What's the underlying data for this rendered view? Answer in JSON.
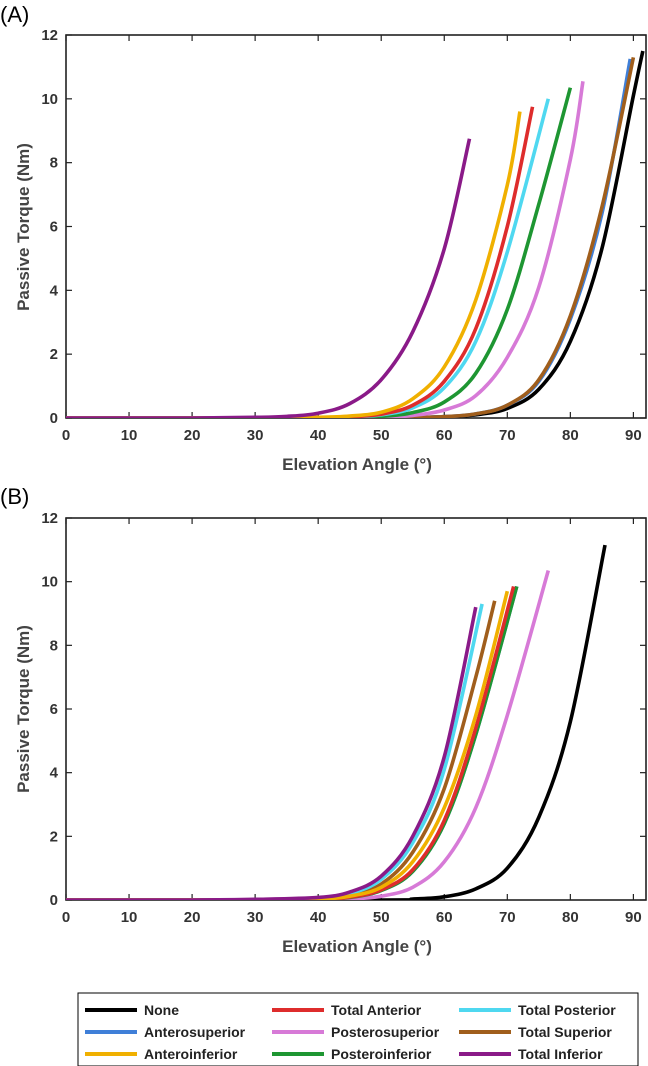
{
  "chart_data": [
    {
      "type": "line",
      "panel_label": "(A)",
      "xlabel": "Elevation Angle (°)",
      "ylabel": "Passive Torque (Nm)",
      "xlim": [
        0,
        92
      ],
      "ylim": [
        0,
        12
      ],
      "xticks": [
        "0",
        "10",
        "20",
        "30",
        "40",
        "50",
        "60",
        "70",
        "80",
        "90"
      ],
      "yticks": [
        "0",
        "2",
        "4",
        "6",
        "8",
        "10",
        "12"
      ],
      "grid": false,
      "series": [
        {
          "name": "None",
          "color": "#000000",
          "x": [
            50,
            55,
            60,
            65,
            70,
            75,
            80,
            85,
            90,
            91.5
          ],
          "y": [
            0.0,
            0.01,
            0.04,
            0.1,
            0.3,
            0.9,
            2.4,
            5.3,
            10.1,
            11.5
          ]
        },
        {
          "name": "Anterosuperior",
          "color": "#3f7fd8",
          "x": [
            50,
            55,
            60,
            65,
            70,
            75,
            80,
            85,
            89.5
          ],
          "y": [
            0.0,
            0.01,
            0.04,
            0.13,
            0.4,
            1.15,
            3.1,
            6.4,
            11.25
          ]
        },
        {
          "name": "Anteroinferior",
          "color": "#f0b000",
          "x": [
            30,
            40,
            45,
            50,
            55,
            60,
            65,
            70,
            72
          ],
          "y": [
            0.0,
            0.02,
            0.06,
            0.18,
            0.6,
            1.6,
            3.7,
            7.3,
            9.6
          ]
        },
        {
          "name": "Total Anterior",
          "color": "#de2c2c",
          "x": [
            30,
            40,
            45,
            50,
            55,
            60,
            65,
            70,
            74
          ],
          "y": [
            0.0,
            0.01,
            0.04,
            0.12,
            0.4,
            1.15,
            2.8,
            6.0,
            9.75
          ]
        },
        {
          "name": "Posterosuperior",
          "color": "#d77ad7",
          "x": [
            40,
            50,
            55,
            60,
            65,
            70,
            75,
            80,
            82
          ],
          "y": [
            0.0,
            0.02,
            0.08,
            0.25,
            0.7,
            1.9,
            4.1,
            8.1,
            10.55
          ]
        },
        {
          "name": "Posteroinferior",
          "color": "#1e9632",
          "x": [
            40,
            45,
            50,
            55,
            60,
            65,
            70,
            75,
            80
          ],
          "y": [
            0.0,
            0.02,
            0.05,
            0.17,
            0.5,
            1.4,
            3.4,
            6.7,
            10.35
          ]
        },
        {
          "name": "Total Posterior",
          "color": "#4fd8f0",
          "x": [
            30,
            40,
            45,
            50,
            55,
            60,
            65,
            70,
            76.5
          ],
          "y": [
            0.0,
            0.01,
            0.03,
            0.1,
            0.32,
            0.95,
            2.4,
            5.2,
            10.0
          ]
        },
        {
          "name": "Total Superior",
          "color": "#a05e1c",
          "x": [
            50,
            55,
            60,
            65,
            70,
            75,
            80,
            85,
            90
          ],
          "y": [
            0.0,
            0.01,
            0.04,
            0.13,
            0.4,
            1.2,
            3.2,
            6.6,
            11.3
          ]
        },
        {
          "name": "Total Inferior",
          "color": "#8a1a88",
          "x": [
            0,
            20,
            30,
            35,
            40,
            45,
            50,
            55,
            60,
            64
          ],
          "y": [
            0.0,
            0.0,
            0.02,
            0.05,
            0.15,
            0.45,
            1.2,
            2.7,
            5.3,
            8.75
          ]
        }
      ]
    },
    {
      "type": "line",
      "panel_label": "(B)",
      "xlabel": "Elevation Angle (°)",
      "ylabel": "Passive Torque (Nm)",
      "xlim": [
        0,
        92
      ],
      "ylim": [
        0,
        12
      ],
      "xticks": [
        "0",
        "10",
        "20",
        "30",
        "40",
        "50",
        "60",
        "70",
        "80",
        "90"
      ],
      "yticks": [
        "0",
        "2",
        "4",
        "6",
        "8",
        "10",
        "12"
      ],
      "grid": false,
      "series": [
        {
          "name": "None",
          "color": "#000000",
          "x": [
            50,
            55,
            60,
            65,
            70,
            75,
            80,
            85.5
          ],
          "y": [
            0.0,
            0.03,
            0.1,
            0.35,
            1.0,
            2.6,
            5.6,
            11.15
          ]
        },
        {
          "name": "Anterosuperior",
          "color": "#3f7fd8",
          "x": [
            30,
            40,
            45,
            50,
            55,
            60,
            65,
            71.5
          ],
          "y": [
            0.0,
            0.02,
            0.08,
            0.3,
            0.9,
            2.4,
            5.2,
            9.85
          ]
        },
        {
          "name": "Anteroinferior",
          "color": "#f0b000",
          "x": [
            30,
            40,
            45,
            50,
            55,
            60,
            65,
            70
          ],
          "y": [
            0.0,
            0.03,
            0.12,
            0.4,
            1.2,
            2.9,
            5.8,
            9.7
          ]
        },
        {
          "name": "Total Anterior",
          "color": "#de2c2c",
          "x": [
            30,
            40,
            45,
            50,
            55,
            60,
            65,
            71
          ],
          "y": [
            0.0,
            0.02,
            0.09,
            0.32,
            0.95,
            2.5,
            5.4,
            9.85
          ]
        },
        {
          "name": "Posterosuperior",
          "color": "#d77ad7",
          "x": [
            40,
            45,
            50,
            55,
            60,
            65,
            70,
            76.5
          ],
          "y": [
            0.0,
            0.03,
            0.12,
            0.4,
            1.2,
            2.9,
            5.8,
            10.35
          ]
        },
        {
          "name": "Posteroinferior",
          "color": "#1e9632",
          "x": [
            30,
            40,
            45,
            50,
            55,
            60,
            65,
            71.5
          ],
          "y": [
            0.0,
            0.02,
            0.08,
            0.3,
            0.9,
            2.4,
            5.2,
            9.85
          ]
        },
        {
          "name": "Total Posterior",
          "color": "#4fd8f0",
          "x": [
            30,
            40,
            45,
            50,
            55,
            60,
            66
          ],
          "y": [
            0.0,
            0.05,
            0.2,
            0.65,
            1.8,
            4.1,
            9.3
          ]
        },
        {
          "name": "Total Superior",
          "color": "#a05e1c",
          "x": [
            30,
            40,
            45,
            50,
            55,
            60,
            65,
            68
          ],
          "y": [
            0.0,
            0.04,
            0.15,
            0.5,
            1.5,
            3.5,
            7.0,
            9.4
          ]
        },
        {
          "name": "Total Inferior",
          "color": "#8a1a88",
          "x": [
            0,
            20,
            30,
            40,
            45,
            50,
            55,
            60,
            65
          ],
          "y": [
            0.0,
            0.0,
            0.02,
            0.08,
            0.25,
            0.75,
            2.0,
            4.5,
            9.2
          ]
        }
      ]
    }
  ],
  "legend": {
    "placement": "bottom",
    "items": [
      {
        "label": "None",
        "color": "#000000"
      },
      {
        "label": "Total Anterior",
        "color": "#de2c2c"
      },
      {
        "label": "Total Posterior",
        "color": "#4fd8f0"
      },
      {
        "label": "Anterosuperior",
        "color": "#3f7fd8"
      },
      {
        "label": "Posterosuperior",
        "color": "#d77ad7"
      },
      {
        "label": "Total Superior",
        "color": "#a05e1c"
      },
      {
        "label": "Anteroinferior",
        "color": "#f0b000"
      },
      {
        "label": "Posteroinferior",
        "color": "#1e9632"
      },
      {
        "label": "Total Inferior",
        "color": "#8a1a88"
      }
    ]
  }
}
